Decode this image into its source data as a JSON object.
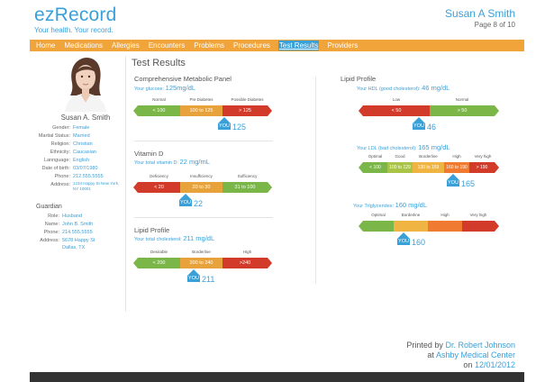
{
  "brand": {
    "name": "ezRecord",
    "tagline": "Your health. Your record."
  },
  "header": {
    "patient_name": "Susan A Smith",
    "page_info": "Page 8 of 10"
  },
  "nav": {
    "items": [
      "Home",
      "Medications",
      "Allergies",
      "Encounters",
      "Problems",
      "Procedures",
      "Test Results",
      "Providers"
    ],
    "active": "Test Results"
  },
  "patient": {
    "name": "Susan A. Smith",
    "fields": [
      {
        "label": "Gender:",
        "value": "Female"
      },
      {
        "label": "Martial Status:",
        "value": "Married"
      },
      {
        "label": "Religion:",
        "value": "Christian"
      },
      {
        "label": "Ethnicity:",
        "value": "Caucasian"
      },
      {
        "label": "Lannguage:",
        "value": "English"
      },
      {
        "label": "Date of birth:",
        "value": "03/07/1980"
      },
      {
        "label": "Phone:",
        "value": "212.555.5555"
      },
      {
        "label": "Address:",
        "value": "1234 Happy St New York, NY 10001"
      }
    ]
  },
  "guardian": {
    "title": "Guardian",
    "fields": [
      {
        "label": "Role:",
        "value": "Husband"
      },
      {
        "label": "Name:",
        "value": "John B. Smith"
      },
      {
        "label": "Phone:",
        "value": "214.555.5555"
      },
      {
        "label": "Address:",
        "value": "5678 Happy St Dallas, TX"
      }
    ]
  },
  "section_title": "Test Results",
  "tests": {
    "cmp": {
      "title": "Comprehensive Metabolic Panel",
      "sub_label": "Your glucose:",
      "sub_value": "125mg/dL",
      "labels": [
        "Normal",
        "Pre Diabetes",
        "Possible Diabetes"
      ],
      "segments": [
        "< 100",
        "100 to 125",
        "> 125"
      ],
      "you_label": "YOU",
      "you_value": "125"
    },
    "vitd": {
      "title": "Vitamin D",
      "sub_label": "Your total vitamin D:",
      "sub_value": "22 mg/mL",
      "labels": [
        "Deficiency",
        "Insufficiency",
        "Sufficiency"
      ],
      "segments": [
        "< 20",
        "20 to 30",
        "31 to 100"
      ],
      "you_label": "YOU",
      "you_value": "22"
    },
    "lipid_total": {
      "title": "Lipid Profile",
      "sub_label": "Your total cholesterol:",
      "sub_value": "211 mg/dL",
      "labels": [
        "Desirable",
        "Borderline",
        "High"
      ],
      "segments": [
        "< 200",
        "200 to 240",
        ">240"
      ],
      "you_label": "YOU",
      "you_value": "211"
    },
    "hdl": {
      "title": "Lipid Profile",
      "sub_label": "Your HDL (good cholesterol):",
      "sub_value": "46 mg/dL",
      "labels": [
        "Low",
        "Normal"
      ],
      "segments": [
        "< 50",
        "> 50"
      ],
      "you_label": "YOU",
      "you_value": "46"
    },
    "ldl": {
      "sub_label": "Your LDL (bad cholesterol):",
      "sub_value": "165 mg/dL",
      "labels": [
        "Optimal",
        "Good",
        "Borderline",
        "High",
        "Very high"
      ],
      "segments": [
        "< 100",
        "100 to 129",
        "130 to 159",
        "160 to 190",
        "> 190"
      ],
      "you_label": "YOU",
      "you_value": "165"
    },
    "trig": {
      "sub_label": "Your Triglycerides:",
      "sub_value": "160 mg/dL",
      "labels": [
        "Optimal",
        "Borderline",
        "High",
        "Very high"
      ],
      "you_label": "YOU",
      "you_value": "160"
    }
  },
  "printed": {
    "by_label": "Printed by",
    "by_name": "Dr. Robert Johnson",
    "at_label": "at",
    "at_name": "Ashby Medical Center",
    "on_label": "on",
    "on_date": "12/01/2012"
  },
  "colors": {
    "accent": "#3aa0d8",
    "nav": "#f0a43a",
    "green": "#7ab648",
    "orange": "#e8a23c",
    "red": "#d23a2a"
  }
}
